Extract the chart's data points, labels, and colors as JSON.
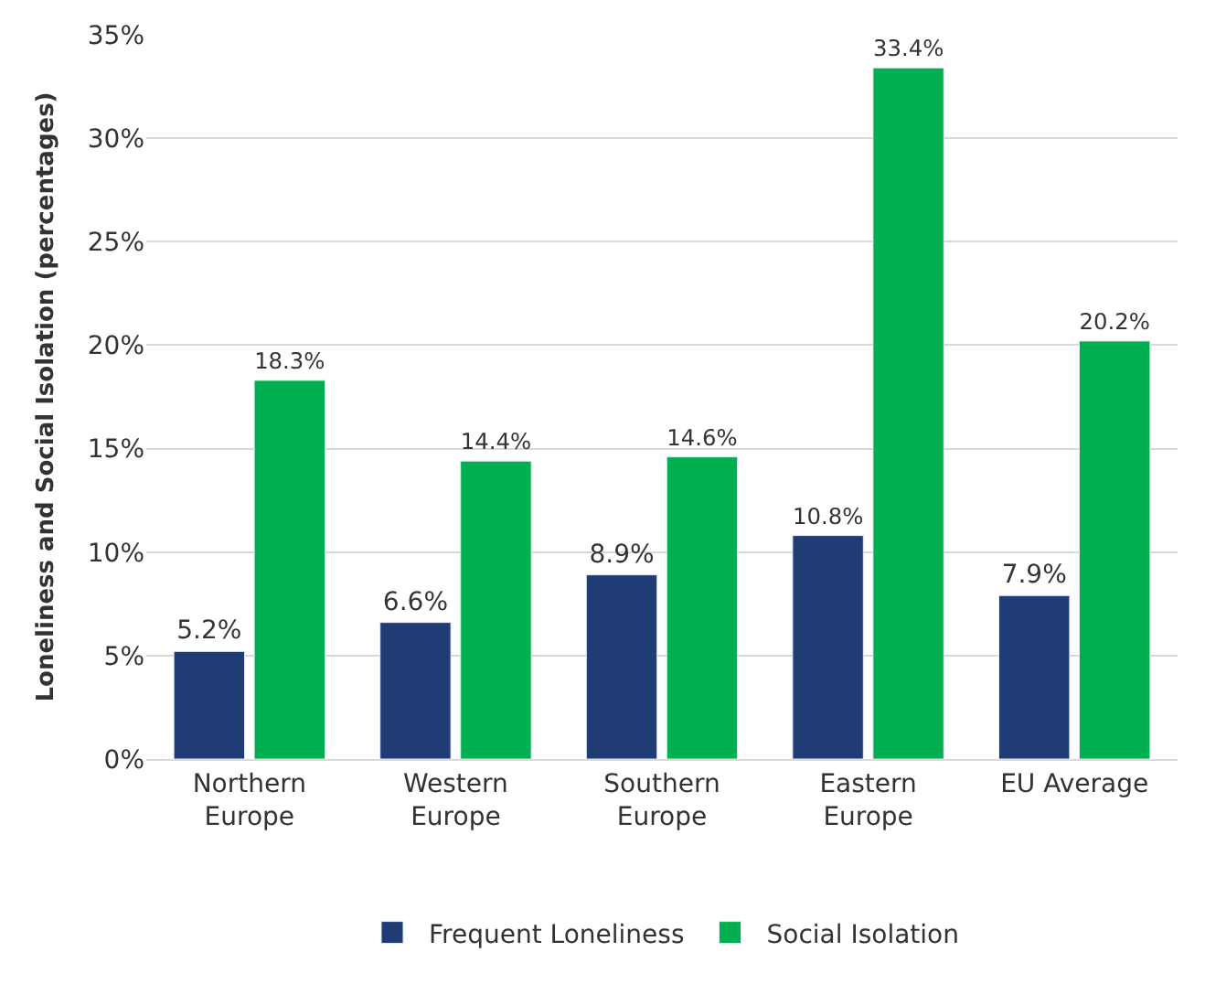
{
  "chart_data": {
    "type": "bar",
    "ylabel": "Loneliness and Social Isolation (percentages)",
    "categories": [
      "Northern Europe",
      "Western Europe",
      "Southern Europe",
      "Eastern Europe",
      "EU Average"
    ],
    "series": [
      {
        "name": "Frequent Loneliness",
        "color": "#1f3c74",
        "values": [
          5.2,
          6.6,
          8.9,
          10.8,
          7.9
        ],
        "value_labels": [
          "5.2%",
          "6.6%",
          "8.9%",
          "10.8%",
          "7.9%"
        ]
      },
      {
        "name": "Social Isolation",
        "color": "#00b050",
        "values": [
          18.3,
          14.4,
          14.6,
          33.4,
          20.2
        ],
        "value_labels": [
          "18.3%",
          "14.4%",
          "14.6%",
          "33.4%",
          "20.2%"
        ]
      }
    ],
    "ylim": [
      0,
      35
    ],
    "yticks": [
      {
        "value": 0,
        "label": "0%"
      },
      {
        "value": 5,
        "label": "5%"
      },
      {
        "value": 10,
        "label": "10%"
      },
      {
        "value": 15,
        "label": "15%"
      },
      {
        "value": 20,
        "label": "20%"
      },
      {
        "value": 25,
        "label": "25%"
      },
      {
        "value": 30,
        "label": "30%"
      },
      {
        "value": 35,
        "label": "35%"
      }
    ],
    "grid": "y",
    "legend": "bottom"
  }
}
